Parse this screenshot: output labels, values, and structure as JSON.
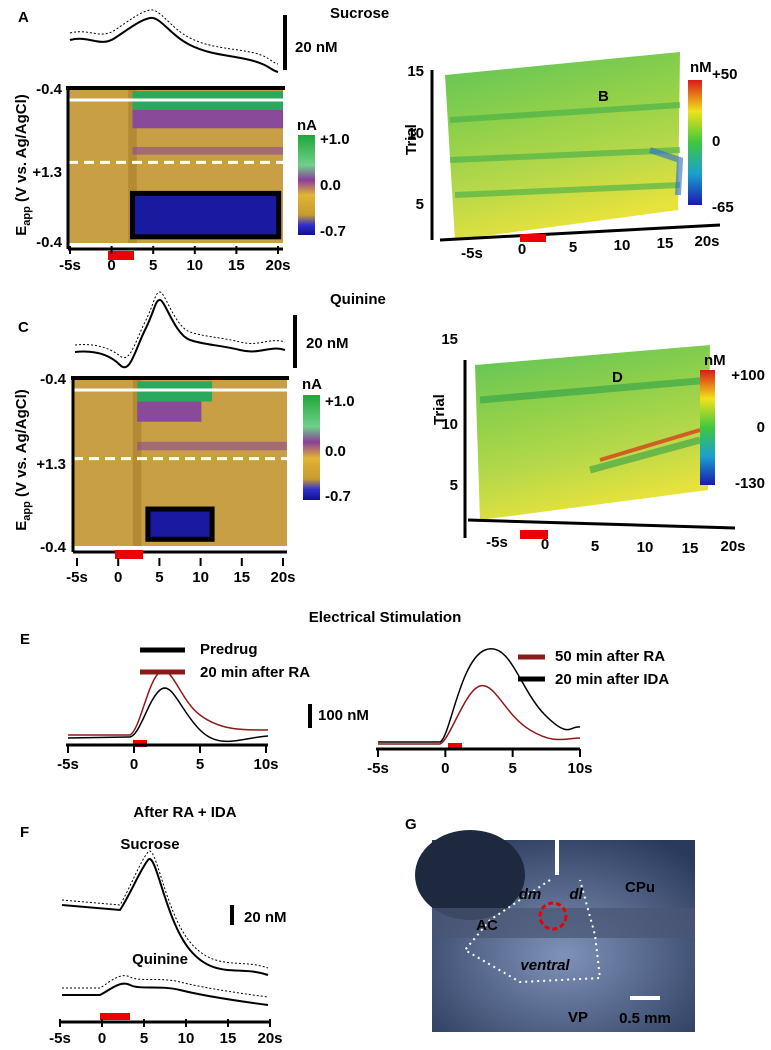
{
  "panels": {
    "A": {
      "label": "A",
      "title": "Sucrose",
      "scale": "20 nM",
      "y_label": {
        "main": "E",
        "sub": "app",
        "rest": " (V vs. Ag/AgCl)"
      },
      "y_ticks": [
        "-0.4",
        "+1.3",
        "-0.4"
      ],
      "x_ticks": [
        "-5s",
        "0",
        "5",
        "10",
        "15",
        "20s"
      ],
      "colorbar": {
        "unit": "nA",
        "ticks": [
          "+1.0",
          "0.0",
          "-0.7"
        ]
      }
    },
    "B": {
      "label": "B",
      "y_label": "Trial",
      "y_ticks": [
        "15",
        "10",
        "5"
      ],
      "x_ticks": [
        "-5s",
        "0",
        "5",
        "10",
        "15",
        "20s"
      ],
      "colorbar": {
        "unit": "nM",
        "ticks": [
          "+50",
          "0",
          "-65"
        ]
      }
    },
    "C": {
      "label": "C",
      "title": "Quinine",
      "scale": "20 nM",
      "y_label": {
        "main": "E",
        "sub": "app",
        "rest": " (V vs. Ag/AgCl)"
      },
      "y_ticks": [
        "-0.4",
        "+1.3",
        "-0.4"
      ],
      "x_ticks": [
        "-5s",
        "0",
        "5",
        "10",
        "15",
        "20s"
      ],
      "colorbar": {
        "unit": "nA",
        "ticks": [
          "+1.0",
          "0.0",
          "-0.7"
        ]
      }
    },
    "D": {
      "label": "D",
      "y_label": "Trial",
      "y_ticks": [
        "15",
        "10",
        "5"
      ],
      "x_ticks": [
        "-5s",
        "0",
        "5",
        "10",
        "15",
        "20s"
      ],
      "colorbar": {
        "unit": "nM",
        "ticks": [
          "+100",
          "0",
          "-130"
        ]
      }
    },
    "E": {
      "label": "E",
      "title": "Electrical Stimulation",
      "legend_left": [
        "Predrug",
        "20 min after RA"
      ],
      "legend_right": [
        "50 min after RA",
        "20 min after IDA"
      ],
      "scale": "100 nM",
      "x_ticks": [
        "-5s",
        "0",
        "5",
        "10s"
      ]
    },
    "F": {
      "label": "F",
      "title": "After RA + IDA",
      "traces": [
        "Sucrose",
        "Quinine"
      ],
      "scale": "20 nM",
      "x_ticks": [
        "-5s",
        "0",
        "5",
        "10",
        "15",
        "20s"
      ]
    },
    "G": {
      "label": "G",
      "regions": [
        "CPu",
        "dm",
        "dl",
        "AC",
        "ventral",
        "VP"
      ],
      "scale": "0.5 mm"
    }
  }
}
